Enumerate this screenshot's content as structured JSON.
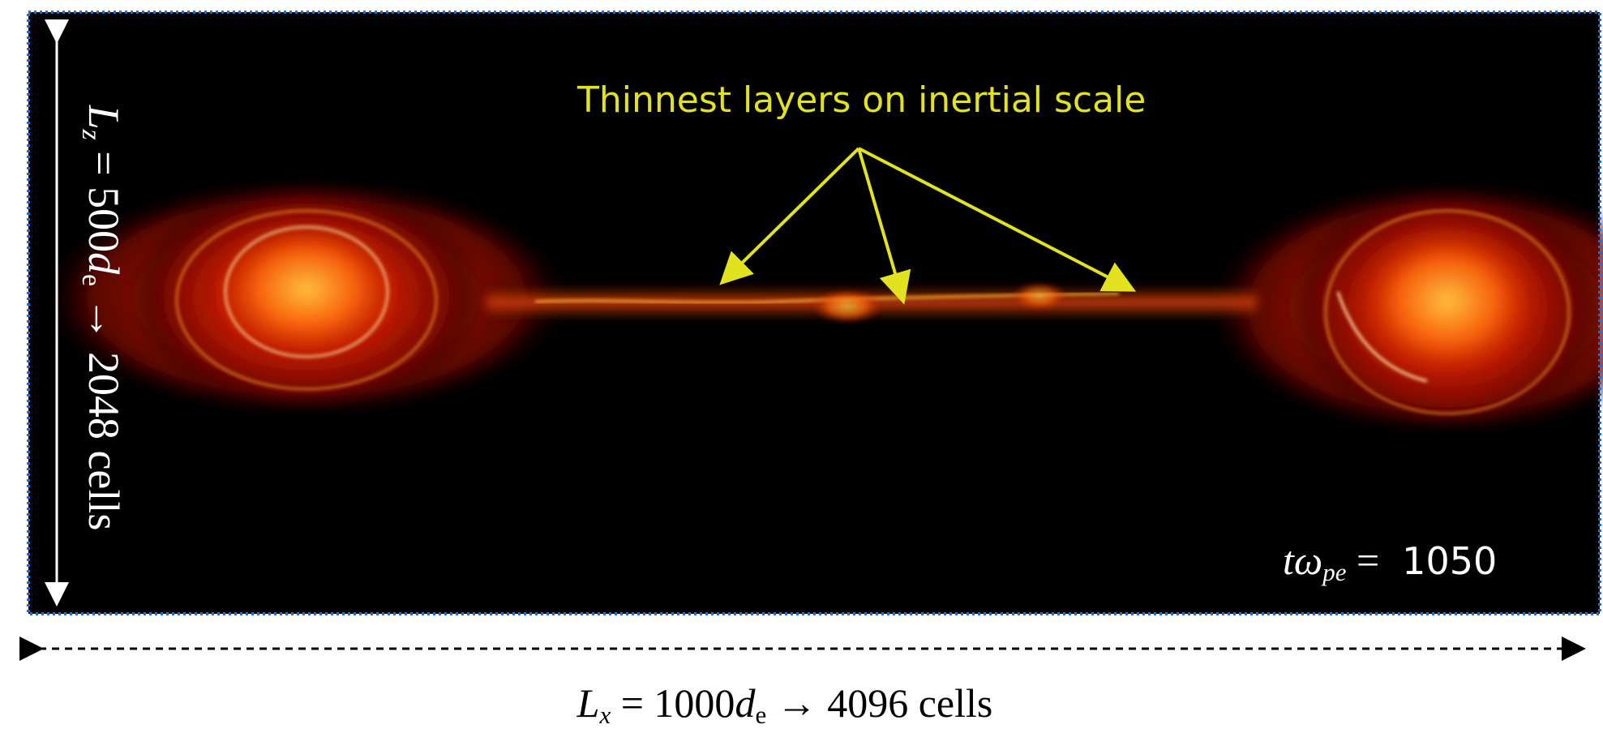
{
  "annotation": "Thinnest layers on inertial scale",
  "vertical_label": {
    "var": "L",
    "sub": "z",
    "eq": "= 500",
    "unit": "d",
    "unit_sub": "e",
    "rest": "→ 2048 cells"
  },
  "time_label": {
    "var": "tω",
    "sub": "pe",
    "eq": "=",
    "value": "1050"
  },
  "horizontal_label": {
    "var": "L",
    "sub": "x",
    "eq": "= 1000",
    "unit": "d",
    "unit_sub": "e",
    "rest": "→ 4096 cells"
  }
}
